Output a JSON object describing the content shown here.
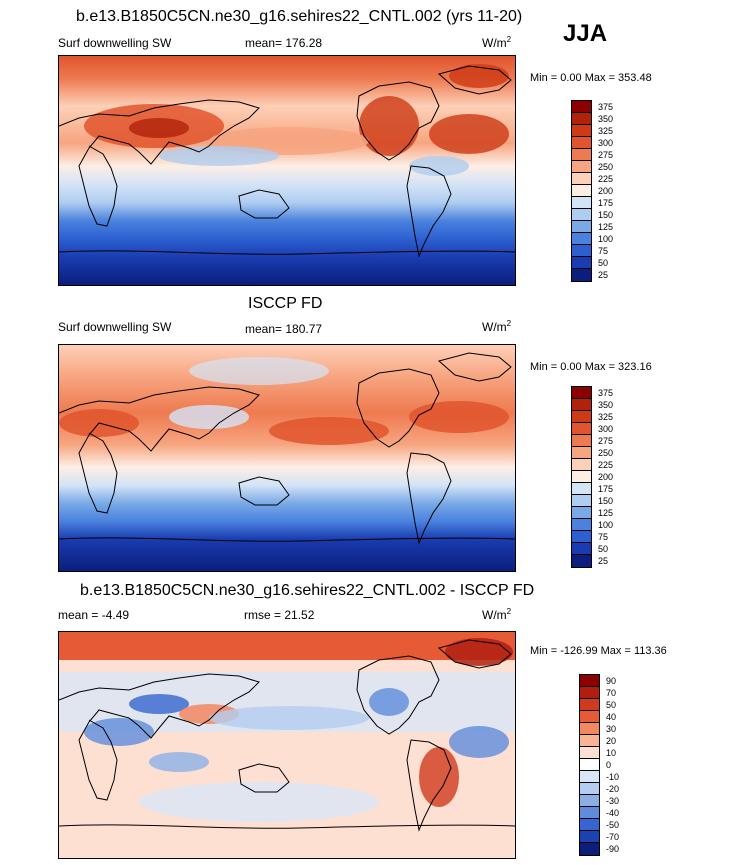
{
  "season": "JJA",
  "panels": [
    {
      "title": "b.e13.B1850C5CN.ne30_g16.sehires22_CNTL.002 (yrs 11-20)",
      "left": "Surf downwelling SW",
      "stat": "mean= 176.28",
      "units": "W/m",
      "units_sup": "2",
      "minmax": "Min =   0.00 Max = 353.48",
      "colorbar": [
        "375",
        "350",
        "325",
        "300",
        "275",
        "250",
        "225",
        "200",
        "175",
        "150",
        "125",
        "100",
        "75",
        "50",
        "25"
      ]
    },
    {
      "title": "ISCCP FD",
      "left": "Surf downwelling SW",
      "stat": "mean= 180.77",
      "units": "W/m",
      "units_sup": "2",
      "minmax": "Min =   0.00 Max = 323.16",
      "colorbar": [
        "375",
        "350",
        "325",
        "300",
        "275",
        "250",
        "225",
        "200",
        "175",
        "150",
        "125",
        "100",
        "75",
        "50",
        "25"
      ]
    },
    {
      "title": "b.e13.B1850C5CN.ne30_g16.sehires22_CNTL.002 - ISCCP FD",
      "left": "mean =  -4.49",
      "stat": "rmse =  21.52",
      "units": "W/m",
      "units_sup": "2",
      "minmax": "Min = -126.99 Max = 113.36",
      "colorbar": [
        "90",
        "70",
        "50",
        "40",
        "30",
        "20",
        "10",
        "0",
        "-10",
        "-20",
        "-30",
        "-40",
        "-50",
        "-70",
        "-90"
      ]
    }
  ],
  "colors": {
    "abs_scale": [
      "#8b0000",
      "#b0220a",
      "#cd3a14",
      "#e0552d",
      "#ee7a50",
      "#f7a580",
      "#fdd0b8",
      "#fdeee4",
      "#d4e4f7",
      "#afcdf0",
      "#7aaae6",
      "#4a82de",
      "#2c5fd0",
      "#1a3cb0",
      "#0b1e7e"
    ],
    "diff_scale": [
      "#8b0000",
      "#b01e10",
      "#d03a1e",
      "#e65a36",
      "#f28860",
      "#f8b596",
      "#fde0d2",
      "#ffffff",
      "#d8e6f7",
      "#b4cdf0",
      "#8cb0e6",
      "#5f8cdc",
      "#3665d0",
      "#1c42b0",
      "#0d1e7a"
    ]
  }
}
